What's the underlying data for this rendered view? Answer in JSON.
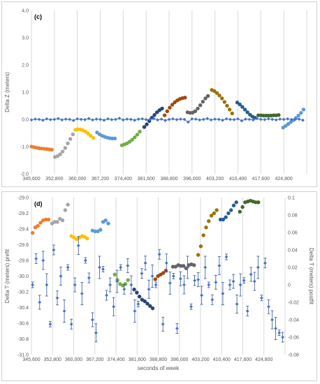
{
  "chart_data": [
    {
      "type": "scatter",
      "panel_label": "(c)",
      "ylabel": "Delta Z (meters)",
      "ylim": [
        -2.0,
        4.0
      ],
      "yticks": [
        "4.0",
        "3.0",
        "2.0",
        "1.0",
        "0.0",
        "-1.0",
        "-2.0"
      ],
      "xlim": [
        345600,
        432000
      ],
      "xticks": [
        "345,600",
        "352,800",
        "360,000",
        "367,200",
        "374,400",
        "381,600",
        "388,800",
        "396,000",
        "403,200",
        "410,400",
        "417,600",
        "424,800"
      ],
      "grid": "vertical",
      "colors": {
        "orange": "#ed7d31",
        "gray": "#a5a5a5",
        "gold": "#ffc000",
        "blue": "#5b9bd5",
        "green": "#70ad47",
        "navy": "#264478",
        "rust": "#9e480e",
        "dark_gray": "#636363",
        "olive": "#997300",
        "dark_blue": "#255e91",
        "dark_green": "#43682b",
        "baseline": "#4472c4"
      },
      "series": [
        {
          "color": "orange",
          "x": [
            345600,
            346400,
            347200,
            348000,
            348800,
            349600,
            350400,
            351200,
            352000
          ],
          "y": [
            -1.0,
            -1.02,
            -1.04,
            -1.06,
            -1.07,
            -1.08,
            -1.09,
            -1.1,
            -1.11
          ]
        },
        {
          "color": "gray",
          "x": [
            353000,
            353800,
            354600,
            355400,
            356200,
            357000,
            357800,
            358600
          ],
          "y": [
            -1.38,
            -1.35,
            -1.28,
            -1.18,
            -1.05,
            -0.88,
            -0.72,
            -0.55
          ]
        },
        {
          "color": "gold",
          "x": [
            359400,
            360200,
            361000,
            361800,
            362600,
            363400,
            364200,
            365000
          ],
          "y": [
            -0.38,
            -0.36,
            -0.37,
            -0.4,
            -0.45,
            -0.52,
            -0.6,
            -0.68
          ]
        },
        {
          "color": "blue",
          "x": [
            366200,
            367000,
            367800,
            368600,
            369400,
            370200,
            371000,
            371800
          ],
          "y": [
            -0.48,
            -0.55,
            -0.6,
            -0.64,
            -0.67,
            -0.69,
            -0.7,
            -0.7
          ]
        },
        {
          "color": "green",
          "x": [
            374000,
            374800,
            375600,
            376400,
            377200,
            378000,
            378800,
            379600
          ],
          "y": [
            -0.95,
            -0.92,
            -0.88,
            -0.82,
            -0.75,
            -0.66,
            -0.56,
            -0.45
          ]
        },
        {
          "color": "navy",
          "x": [
            381000,
            381800,
            382600,
            383400,
            384200,
            385000,
            385800,
            386600
          ],
          "y": [
            -0.28,
            -0.18,
            -0.06,
            0.06,
            0.16,
            0.26,
            0.34,
            0.4
          ]
        },
        {
          "color": "rust",
          "x": [
            387400,
            388200,
            389000,
            389800,
            390600,
            391400,
            392200,
            393000,
            393800
          ],
          "y": [
            0.15,
            0.3,
            0.43,
            0.54,
            0.63,
            0.7,
            0.75,
            0.78,
            0.8
          ]
        },
        {
          "color": "dark_gray",
          "x": [
            394600,
            395400,
            396200,
            397000,
            397800,
            398600,
            399400,
            400200,
            401000
          ],
          "y": [
            0.26,
            0.24,
            0.25,
            0.3,
            0.4,
            0.52,
            0.65,
            0.77,
            0.86
          ]
        },
        {
          "color": "olive",
          "x": [
            402200,
            403000,
            403800,
            404600,
            405400,
            406200,
            407000,
            407800,
            408600
          ],
          "y": [
            1.08,
            1.04,
            0.97,
            0.88,
            0.77,
            0.64,
            0.5,
            0.36,
            0.22
          ]
        },
        {
          "color": "dark_blue",
          "x": [
            410200,
            411000,
            411800,
            412600,
            413400,
            414200,
            415000,
            415800
          ],
          "y": [
            0.62,
            0.55,
            0.46,
            0.36,
            0.26,
            0.17,
            0.1,
            0.06
          ]
        },
        {
          "color": "dark_green",
          "x": [
            416800,
            417600,
            418400,
            419200,
            420000,
            420800,
            421600,
            422400,
            423200
          ],
          "y": [
            0.15,
            0.15,
            0.14,
            0.14,
            0.14,
            0.14,
            0.15,
            0.15,
            0.16
          ]
        },
        {
          "color": "blue",
          "x": [
            424600,
            425400,
            426200,
            427000,
            427800,
            428600,
            429400,
            430200,
            431000
          ],
          "y": [
            -0.3,
            -0.24,
            -0.17,
            -0.1,
            -0.03,
            0.05,
            0.14,
            0.24,
            0.36
          ]
        },
        {
          "color": "baseline",
          "x": [
            345600,
            346800,
            348000,
            349200,
            350400,
            351600,
            352800,
            354000,
            355200,
            356400,
            357600,
            358800,
            360000,
            361200,
            362400,
            363600,
            364800,
            366000,
            367200,
            368400,
            369600,
            370800,
            372000,
            373200,
            374400,
            375600,
            376800,
            378000,
            379200,
            380400,
            381600,
            382800,
            384000,
            385200,
            386400,
            387600,
            388800,
            390000,
            391200,
            392400,
            393600,
            394800,
            396000,
            397200,
            398400,
            399600,
            400800,
            402000,
            403200,
            404400,
            405600,
            406800,
            408000,
            409200,
            410400,
            411600,
            412800,
            414000,
            415200,
            416400,
            417600,
            418800,
            420000,
            421200,
            422400,
            423600,
            424800,
            426000,
            427200,
            428400,
            429600,
            430800
          ],
          "y": [
            -0.02,
            0.01,
            0.0,
            -0.03,
            0.02,
            -0.01,
            0.0,
            0.03,
            -0.02,
            0.01,
            0.0,
            -0.04,
            0.02,
            0.0,
            -0.01,
            0.03,
            -0.02,
            0.01,
            0.0,
            -0.03,
            0.02,
            -0.01,
            0.0,
            0.04,
            -0.02,
            0.01,
            0.0,
            -0.03,
            0.01,
            0.02,
            -0.01,
            0.0,
            0.03,
            -0.02,
            0.01,
            -0.04,
            0.0,
            0.02,
            -0.01,
            0.01,
            0.0,
            -0.1,
            0.02,
            0.01,
            -0.02,
            0.0,
            0.03,
            -0.02,
            0.01,
            0.0,
            -0.03,
            0.02,
            0.0,
            -0.01,
            0.02,
            -0.05,
            0.01,
            0.0,
            -0.02,
            0.03,
            0.0,
            -0.01,
            0.02,
            0.0,
            -0.02,
            0.01,
            0.0,
            0.02,
            -0.01,
            0.0,
            0.01,
            -0.03
          ]
        }
      ]
    },
    {
      "type": "scatter",
      "panel_label": "(d)",
      "xlabel": "seconds of week",
      "ylabel": "Delta T (meters) prefit",
      "y2label": "Delta T (meters) postfit",
      "ylim": [
        -31.0,
        -29.0
      ],
      "yticks": [
        "-29.0",
        "-29.2",
        "-29.4",
        "-29.6",
        "-29.8",
        "-30.0",
        "-30.2",
        "-30.4",
        "-30.6",
        "-30.8",
        "-31.0"
      ],
      "y2lim": [
        -0.08,
        0.1
      ],
      "y2ticks": [
        "0.1",
        "0.08",
        "0.06",
        "0.04",
        "0.02",
        "0",
        "-0.02",
        "-0.04",
        "-0.06",
        "-0.08"
      ],
      "xlim": [
        345600,
        432000
      ],
      "xticks": [
        "345,600",
        "352,800",
        "360,000",
        "367,200",
        "374,400",
        "381,600",
        "388,800",
        "396,000",
        "403,200",
        "410,400",
        "417,600",
        "424,800"
      ],
      "grid": "vertical",
      "series": [
        {
          "color": "orange",
          "x": [
            346000,
            346900,
            347800,
            348700,
            349600,
            350500,
            351400
          ],
          "y": [
            -29.45,
            -29.38,
            -29.36,
            -29.32,
            -29.29,
            -29.28,
            -29.28
          ]
        },
        {
          "color": "gray",
          "x": [
            352600,
            353500,
            354400,
            355300,
            356200,
            357100,
            358000
          ],
          "y": [
            -29.33,
            -29.31,
            -29.31,
            -29.27,
            -29.29,
            -29.16,
            -29.09
          ]
        },
        {
          "color": "gold",
          "x": [
            359200,
            360100,
            361000,
            361900,
            362800,
            363700,
            364600
          ],
          "y": [
            -29.49,
            -29.51,
            -29.53,
            -29.51,
            -29.49,
            -29.5,
            -29.52
          ]
        },
        {
          "color": "blue",
          "x": [
            366400,
            367300,
            368200,
            369100,
            370000,
            370900,
            371800
          ],
          "y": [
            -29.42,
            -29.43,
            -29.43,
            -29.41,
            -29.31,
            -29.29,
            -29.33
          ]
        },
        {
          "color": "green",
          "x": [
            374000,
            374900,
            375800,
            376700,
            377600,
            378500
          ],
          "y": [
            -29.98,
            -30.05,
            -30.1,
            -30.12,
            -30.1,
            -30.05
          ]
        },
        {
          "color": "navy",
          "x": [
            380600,
            381500,
            382400,
            383300,
            384200,
            385100,
            386000,
            386900
          ],
          "y": [
            -30.17,
            -30.21,
            -30.26,
            -30.3,
            -30.32,
            -30.35,
            -30.38,
            -30.41
          ]
        },
        {
          "color": "rust",
          "x": [
            387800,
            388700,
            389600,
            390500,
            391400
          ],
          "y": [
            -30.04,
            -30.0,
            -29.98,
            -29.96,
            -29.93
          ]
        },
        {
          "color": "dark_gray",
          "x": [
            393800,
            394700,
            395600,
            396500,
            397400,
            398300,
            399200,
            400100,
            401000
          ],
          "y": [
            -29.88,
            -29.88,
            -29.86,
            -29.87,
            -29.87,
            -29.9,
            -29.86,
            -29.85,
            -29.86
          ]
        },
        {
          "color": "olive",
          "x": [
            402400,
            403300,
            404200,
            405100,
            406000,
            406900,
            407800,
            408700
          ],
          "y": [
            -29.73,
            -29.62,
            -29.48,
            -29.38,
            -29.3,
            -29.23,
            -29.2,
            -29.16
          ]
        },
        {
          "color": "dark_blue",
          "x": [
            410000,
            410900,
            411800,
            412700,
            413600,
            414500,
            415400
          ],
          "y": [
            -29.28,
            -29.28,
            -29.25,
            -29.2,
            -29.16,
            -29.1,
            -29.06
          ]
        },
        {
          "color": "dark_green",
          "x": [
            416600,
            417500,
            418400,
            419300,
            420200,
            421100,
            422000,
            422900
          ],
          "y": [
            -29.18,
            -29.12,
            -29.06,
            -29.05,
            -29.04,
            -29.05,
            -29.06,
            -29.06
          ]
        },
        {
          "color": "baseline",
          "axis": "y2",
          "x": [
            346000,
            347200,
            348400,
            349600,
            350800,
            352000,
            353200,
            354400,
            355600,
            356800,
            358000,
            359200,
            360400,
            361600,
            362800,
            364000,
            365200,
            366400,
            367600,
            368800,
            370000,
            371200,
            372400,
            373600,
            374800,
            376000,
            377200,
            378400,
            379600,
            380800,
            382000,
            383200,
            384400,
            385600,
            386800,
            388000,
            389200,
            390400,
            391600,
            392800,
            394000,
            395200,
            396400,
            397600,
            398800,
            400000,
            401200,
            402400,
            403600,
            404800,
            406000,
            407200,
            408400,
            409600,
            410800,
            412000,
            413200,
            414400,
            415600,
            416800,
            418000,
            419200,
            420400,
            421600,
            422800,
            424000,
            425200,
            426400,
            427600,
            428800,
            430000,
            431200
          ],
          "y": [
            0.0,
            0.03,
            -0.02,
            0.028,
            0.0,
            -0.045,
            0.04,
            -0.015,
            0.01,
            -0.03,
            0.02,
            -0.045,
            0.0,
            0.045,
            -0.01,
            0.028,
            0.008,
            -0.04,
            -0.055,
            0.02,
            0.018,
            -0.012,
            0.0,
            -0.025,
            0.004,
            0.02,
            -0.005,
            0.022,
            0.0,
            -0.03,
            -0.022,
            0.013,
            0.025,
            -0.005,
            0.01,
            0.0,
            0.035,
            -0.045,
            0.025,
            0.002,
            0.01,
            -0.05,
            0.007,
            0.0,
            0.02,
            -0.025,
            0.005,
            0.006,
            -0.012,
            0.02,
            0.0,
            -0.017,
            0.003,
            0.022,
            -0.01,
            0.032,
            0.0,
            0.004,
            -0.022,
            0.0,
            0.005,
            -0.03,
            0.012,
            0.004,
            0.02,
            -0.015,
            0.025,
            -0.025,
            -0.04,
            -0.05,
            -0.055,
            -0.06
          ]
        }
      ]
    }
  ]
}
